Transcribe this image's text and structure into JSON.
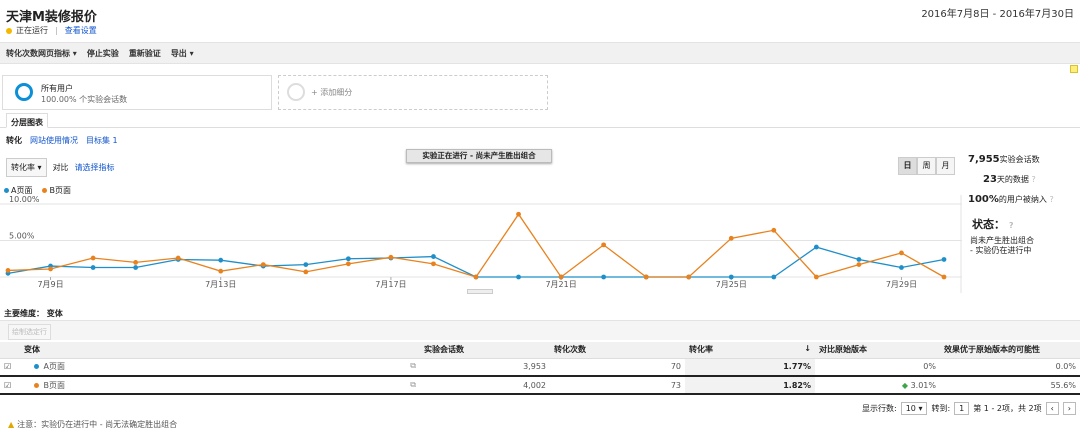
{
  "header": {
    "title": "天津M装修报价",
    "status": "正在运行",
    "separator": "|",
    "settings_link": "查看设置",
    "date_range": "2016年7月8日 - 2016年7月30日"
  },
  "toolbar": {
    "items": [
      "转化次数网页指标 ▾",
      "停止实验",
      "重新验证",
      "导出 ▾"
    ]
  },
  "segments": {
    "seg1_name": "所有用户",
    "seg1_sub": "100.00% 个实验会话数",
    "seg2_label": "+ 添加细分"
  },
  "tabs": {
    "main": "分层图表",
    "sub": [
      "转化",
      "网站使用情况",
      "目标集 1"
    ]
  },
  "controls": {
    "metric": "转化率",
    "compare": "对比",
    "pick": "请选择指标"
  },
  "banner": "实验正在进行 - 尚未产生胜出组合",
  "periods": [
    "日",
    "周",
    "月"
  ],
  "legend": {
    "a": "A页面",
    "b": "B页面"
  },
  "colors": {
    "a": "#1f8fc9",
    "b": "#e8821e"
  },
  "chart_data": {
    "type": "line",
    "y_ticks": [
      "10.00%",
      "5.00%"
    ],
    "ylim": [
      0,
      10
    ],
    "x": [
      "7月8日",
      "7月9日",
      "7月10日",
      "7月11日",
      "7月12日",
      "7月13日",
      "7月14日",
      "7月15日",
      "7月16日",
      "7月17日",
      "7月18日",
      "7月19日",
      "7月20日",
      "7月21日",
      "7月22日",
      "7月23日",
      "7月24日",
      "7月25日",
      "7月26日",
      "7月27日",
      "7月28日",
      "7月29日",
      "7月30日"
    ],
    "x_tick_labels": [
      "7月9日",
      "7月13日",
      "7月17日",
      "7月21日",
      "7月25日",
      "7月29日"
    ],
    "series": [
      {
        "name": "A页面",
        "values": [
          0.5,
          1.5,
          1.3,
          1.3,
          2.4,
          2.3,
          1.5,
          1.7,
          2.5,
          2.6,
          2.8,
          0,
          0,
          0,
          0,
          0,
          0,
          0,
          0,
          4.1,
          2.4,
          1.3,
          2.4
        ]
      },
      {
        "name": "B页面",
        "values": [
          0.9,
          1.1,
          2.6,
          2.0,
          2.6,
          0.8,
          1.7,
          0.7,
          1.8,
          2.7,
          1.8,
          0,
          8.6,
          0,
          4.4,
          0,
          0,
          5.3,
          6.4,
          0,
          1.7,
          3.3,
          0
        ]
      }
    ]
  },
  "stats": {
    "sessions_num": "7,955",
    "sessions_label": "实验会话数",
    "days_num": "23",
    "days_label": "天的数据",
    "pct_num": "100%",
    "pct_label": "的用户被纳入",
    "status_title": "状态：",
    "status_line1": "尚未产生胜出组合",
    "status_line2": "- 实验仍在进行中"
  },
  "dims": {
    "label": "主要维度：",
    "value": "变体"
  },
  "filter_label": "绘制选定行",
  "table": {
    "headers": [
      "变体",
      "实验会话数",
      "转化次数",
      "转化率",
      "↓",
      "对比原始版本",
      "效果优于原始版本的可能性"
    ],
    "rows": [
      {
        "name": "A页面",
        "sessions": "3,953",
        "conversions": "70",
        "rate": "1.77%",
        "compare": "0%",
        "prob": "0.0%"
      },
      {
        "name": "B页面",
        "sessions": "4,002",
        "conversions": "73",
        "rate": "1.82%",
        "compare": "3.01%",
        "prob": "55.6%"
      }
    ]
  },
  "pager": {
    "show_rows": "显示行数:",
    "rows_value": "10",
    "goto": "转到:",
    "goto_value": "1",
    "range": "第 1 - 2项，共 2项"
  },
  "note": "注意：实验仍在进行中 - 尚无法确定胜出组合"
}
